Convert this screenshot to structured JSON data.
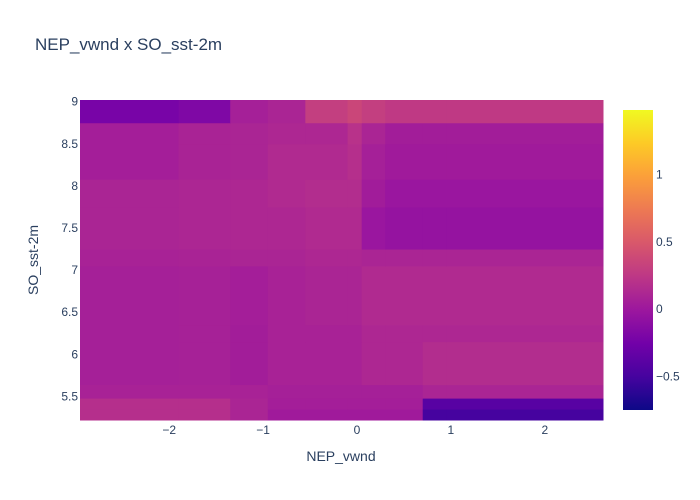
{
  "chart_data": {
    "type": "heatmap",
    "title": "NEP_vwnd x SO_sst-2m",
    "xlabel": "NEP_vwnd",
    "ylabel": "SO_sst-2m",
    "xlim": [
      -2.95,
      2.62
    ],
    "ylim": [
      5.22,
      9.02
    ],
    "xticks": [
      -2,
      -1,
      0,
      1,
      2
    ],
    "xtick_labels": [
      "−2",
      "−1",
      "0",
      "1",
      "2"
    ],
    "yticks": [
      5.5,
      6,
      6.5,
      7,
      7.5,
      8,
      8.5,
      9
    ],
    "ytick_labels": [
      "5.5",
      "6",
      "6.5",
      "7",
      "7.5",
      "8",
      "8.5",
      "9"
    ],
    "colorscale": "plasma",
    "zlim": [
      -0.75,
      1.48
    ],
    "colorbar_ticks": [
      -0.5,
      0,
      0.5,
      1
    ],
    "colorbar_tick_labels": [
      "−0.5",
      "0",
      "0.5",
      "1"
    ],
    "x_edges": [
      -2.95,
      -1.9,
      -1.35,
      -0.95,
      -0.55,
      -0.1,
      0.05,
      0.3,
      0.7,
      0.95,
      2.62
    ],
    "y_edges": [
      5.22,
      5.35,
      5.48,
      5.64,
      6.15,
      6.35,
      7.05,
      7.25,
      7.75,
      8.08,
      8.5,
      8.75,
      9.02
    ],
    "z": [
      [
        0.18,
        0.18,
        0.1,
        0.02,
        0.02,
        0.02,
        0.02,
        0.02,
        -0.5,
        -0.5
      ],
      [
        0.18,
        0.18,
        0.1,
        0.05,
        0.05,
        0.05,
        0.05,
        0.05,
        -0.4,
        -0.4
      ],
      [
        0.08,
        0.08,
        0.08,
        0.06,
        0.06,
        0.06,
        0.06,
        0.06,
        0.1,
        0.1
      ],
      [
        0.06,
        0.07,
        0.04,
        0.08,
        0.08,
        0.08,
        0.12,
        0.12,
        0.16,
        0.16
      ],
      [
        0.06,
        0.07,
        0.04,
        0.08,
        0.08,
        0.08,
        0.12,
        0.12,
        0.12,
        0.12
      ],
      [
        0.06,
        0.07,
        0.05,
        0.08,
        0.1,
        0.1,
        0.14,
        0.14,
        0.14,
        0.14
      ],
      [
        0.08,
        0.09,
        0.1,
        0.1,
        0.12,
        0.12,
        0.1,
        0.1,
        0.1,
        0.1
      ],
      [
        0.1,
        0.11,
        0.12,
        0.12,
        0.14,
        0.14,
        -0.02,
        -0.05,
        -0.05,
        -0.05
      ],
      [
        0.1,
        0.11,
        0.12,
        0.14,
        0.16,
        0.16,
        0.03,
        -0.02,
        -0.02,
        -0.02
      ],
      [
        0.05,
        0.09,
        0.1,
        0.14,
        0.14,
        0.18,
        0.06,
        0.02,
        0.02,
        0.02
      ],
      [
        0.05,
        0.09,
        0.1,
        0.12,
        0.12,
        0.2,
        0.1,
        0.04,
        0.04,
        0.04
      ],
      [
        -0.22,
        -0.18,
        0.06,
        0.1,
        0.3,
        0.36,
        0.3,
        0.26,
        0.26,
        0.26
      ]
    ]
  }
}
